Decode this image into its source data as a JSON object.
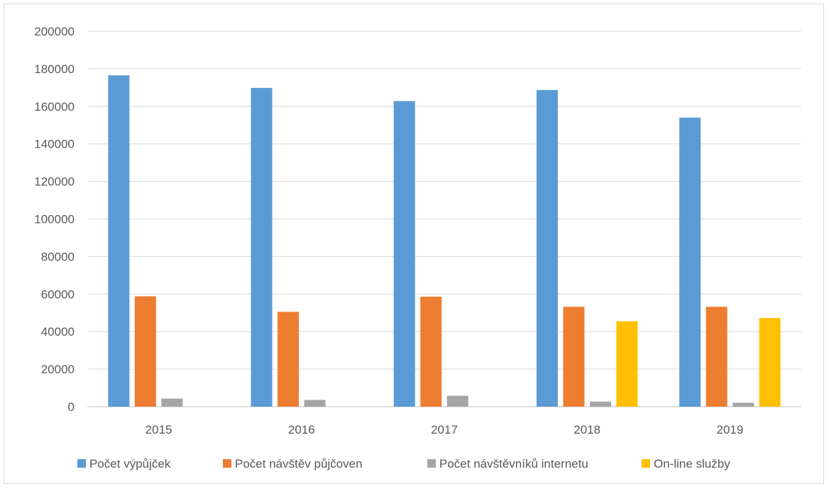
{
  "chart_data": {
    "type": "bar",
    "title": "",
    "xlabel": "",
    "ylabel": "",
    "categories": [
      "2015",
      "2016",
      "2017",
      "2018",
      "2019"
    ],
    "ylim": [
      0,
      200000
    ],
    "yticks": [
      0,
      20000,
      40000,
      60000,
      80000,
      100000,
      120000,
      140000,
      160000,
      180000,
      200000
    ],
    "yticks_labels": [
      "0",
      "20000",
      "40000",
      "60000",
      "80000",
      "100000",
      "120000",
      "140000",
      "160000",
      "180000",
      "200000"
    ],
    "grid": true,
    "legend_position": "bottom",
    "series": [
      {
        "name": "Počet výpůjček",
        "color": "#5b9bd5",
        "values": [
          176500,
          169800,
          162800,
          168700,
          154000
        ]
      },
      {
        "name": "Počet návštěv půjčoven",
        "color": "#ed7d31",
        "values": [
          58800,
          50500,
          58600,
          53200,
          53200
        ]
      },
      {
        "name": "Počet návštěvníků internetu",
        "color": "#a5a5a5",
        "values": [
          4300,
          3600,
          5800,
          2700,
          2100
        ]
      },
      {
        "name": "On-line služby",
        "color": "#ffc000",
        "values": [
          null,
          null,
          null,
          45500,
          47200
        ]
      }
    ]
  }
}
